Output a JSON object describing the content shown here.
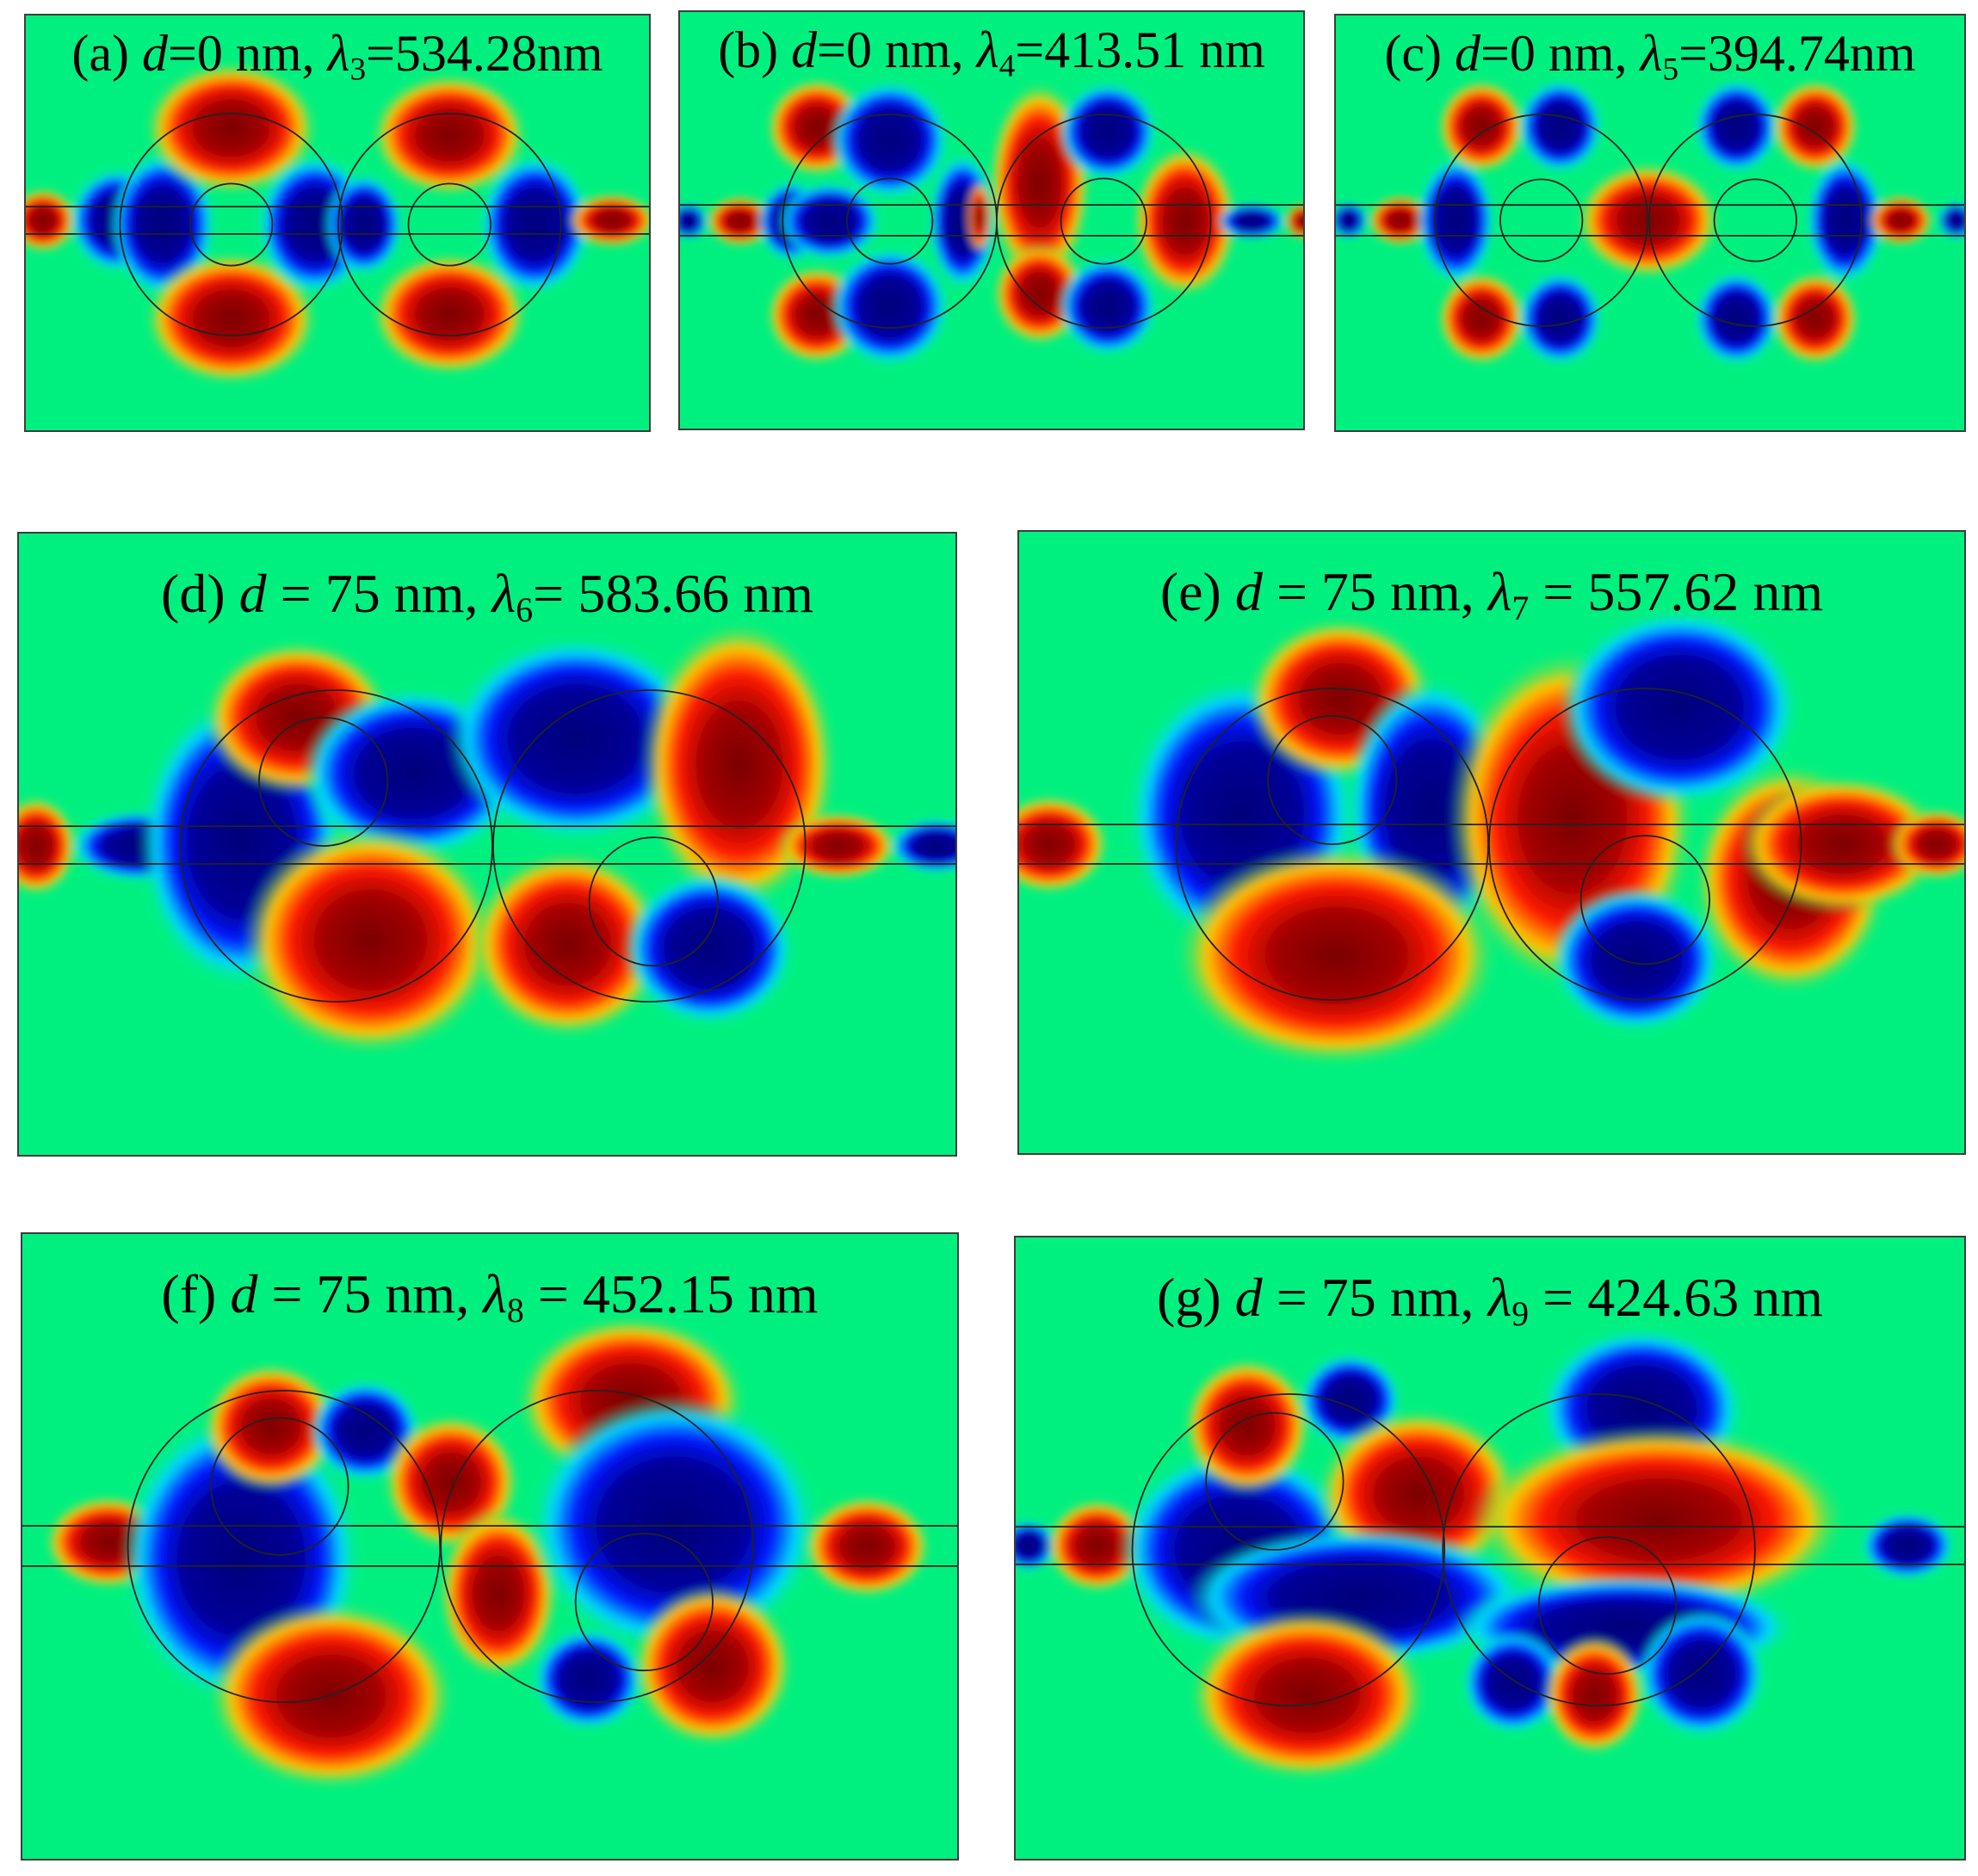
{
  "figure": {
    "panels": [
      {
        "id": "a",
        "label": "(a)",
        "d_symbol": "d",
        "d_value": "=0 nm,",
        "lambda_symbol": "λ",
        "lambda_index": "3",
        "lambda_value": "=534.28nm"
      },
      {
        "id": "b",
        "label": "(b)",
        "d_symbol": "d",
        "d_value": "=0 nm,",
        "lambda_symbol": "λ",
        "lambda_index": "4",
        "lambda_value": "=413.51 nm"
      },
      {
        "id": "c",
        "label": "(c)",
        "d_symbol": "d",
        "d_value": "=0 nm,",
        "lambda_symbol": "λ",
        "lambda_index": "5",
        "lambda_value": "=394.74nm"
      },
      {
        "id": "d",
        "label": "(d)",
        "d_symbol": "d",
        "d_value": " = 75 nm,",
        "lambda_symbol": "λ",
        "lambda_index": "6",
        "lambda_value": "= 583.66 nm"
      },
      {
        "id": "e",
        "label": "(e)",
        "d_symbol": "d",
        "d_value": " = 75 nm,",
        "lambda_symbol": "λ",
        "lambda_index": "7",
        "lambda_value": " = 557.62 nm"
      },
      {
        "id": "f",
        "label": "(f)",
        "d_symbol": "d",
        "d_value": " = 75 nm,",
        "lambda_symbol": "λ",
        "lambda_index": "8",
        "lambda_value": " = 452.15 nm"
      },
      {
        "id": "g",
        "label": "(g)",
        "d_symbol": "d",
        "d_value": " = 75 nm,",
        "lambda_symbol": "λ",
        "lambda_index": "9",
        "lambda_value": " = 424.63 nm"
      }
    ],
    "colors": {
      "background": "#00f080",
      "dark_red": "#8b0000",
      "red": "#ff1a00",
      "dark_blue": "#000090",
      "blue": "#0018ff",
      "yellow": "#ffe000",
      "cyan": "#00d8ff",
      "outline": "#222222"
    }
  }
}
